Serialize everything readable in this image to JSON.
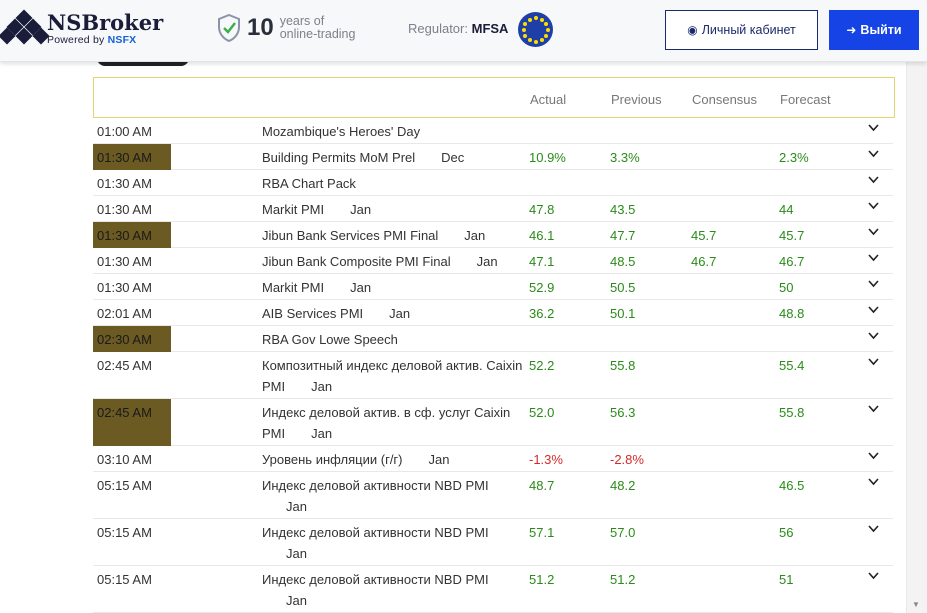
{
  "header": {
    "brand_name": "NSBroker",
    "brand_sub_prefix": "Powered by ",
    "brand_sub_highlight": "NSFX",
    "years_number": "10",
    "years_line1": "years of",
    "years_line2": "online-trading",
    "regulator_label": "Regulator:",
    "regulator_value": "MFSA",
    "cabinet_label": "Личный кабинет",
    "exit_label": "Выйти"
  },
  "colors": {
    "accent": "#1543e6",
    "navy": "#1a2a6c",
    "positive": "#2a8a1a",
    "negative": "#d42a2a",
    "highlight": "#6b5a22"
  },
  "table": {
    "columns": {
      "actual": "Actual",
      "previous": "Previous",
      "consensus": "Consensus",
      "forecast": "Forecast"
    },
    "rows": [
      {
        "time": "01:00 AM",
        "hl": false,
        "event": "Mozambique's Heroes' Day",
        "period": "",
        "actual": "",
        "previous": "",
        "consensus": "",
        "forecast": "",
        "h": 26
      },
      {
        "time": "01:30 AM",
        "hl": true,
        "event": "Building Permits MoM Prel",
        "period": "Dec",
        "actual": "10.9%",
        "previous": "3.3%",
        "consensus": "",
        "forecast": "2.3%",
        "h": 26
      },
      {
        "time": "01:30 AM",
        "hl": false,
        "event": "RBA Chart Pack",
        "period": "",
        "actual": "",
        "previous": "",
        "consensus": "",
        "forecast": "",
        "h": 26
      },
      {
        "time": "01:30 AM",
        "hl": false,
        "event": "Markit PMI",
        "period": "Jan",
        "actual": "47.8",
        "previous": "43.5",
        "consensus": "",
        "forecast": "44",
        "h": 26
      },
      {
        "time": "01:30 AM",
        "hl": true,
        "event": "Jibun Bank Services PMI Final",
        "period": "Jan",
        "actual": "46.1",
        "previous": "47.7",
        "consensus": "45.7",
        "forecast": "45.7",
        "h": 26
      },
      {
        "time": "01:30 AM",
        "hl": false,
        "event": "Jibun Bank Composite PMI Final",
        "period": "Jan",
        "actual": "47.1",
        "previous": "48.5",
        "consensus": "46.7",
        "forecast": "46.7",
        "h": 26
      },
      {
        "time": "01:30 AM",
        "hl": false,
        "event": "Markit PMI",
        "period": "Jan",
        "actual": "52.9",
        "previous": "50.5",
        "consensus": "",
        "forecast": "50",
        "h": 26
      },
      {
        "time": "02:01 AM",
        "hl": false,
        "event": "AIB Services PMI",
        "period": "Jan",
        "actual": "36.2",
        "previous": "50.1",
        "consensus": "",
        "forecast": "48.8",
        "h": 26
      },
      {
        "time": "02:30 AM",
        "hl": true,
        "event": "RBA Gov Lowe Speech",
        "period": "",
        "actual": "",
        "previous": "",
        "consensus": "",
        "forecast": "",
        "h": 26
      },
      {
        "time": "02:45 AM",
        "hl": false,
        "event": "Композитный индекс деловой актив. Caixin PMI",
        "period": "Jan",
        "actual": "52.2",
        "previous": "55.8",
        "consensus": "",
        "forecast": "55.4",
        "h": 47
      },
      {
        "time": "02:45 AM",
        "hl": true,
        "event": "Индекс деловой актив. в сф. услуг Caixin PMI",
        "period": "Jan",
        "actual": "52.0",
        "previous": "56.3",
        "consensus": "",
        "forecast": "55.8",
        "h": 47
      },
      {
        "time": "03:10 AM",
        "hl": false,
        "event": "Уровень инфляции (г/г)",
        "period": "Jan",
        "actual": "-1.3%",
        "previous": "-2.8%",
        "consensus": "",
        "forecast": "",
        "neg": true,
        "h": 26
      },
      {
        "time": "05:15 AM",
        "hl": false,
        "event": "Индекс деловой активности NBD PMI",
        "period": "Jan",
        "actual": "48.7",
        "previous": "48.2",
        "consensus": "",
        "forecast": "46.5",
        "h": 47
      },
      {
        "time": "05:15 AM",
        "hl": false,
        "event": "Индекс деловой активности NBD PMI",
        "period": "Jan",
        "actual": "57.1",
        "previous": "57.0",
        "consensus": "",
        "forecast": "56",
        "h": 47
      },
      {
        "time": "05:15 AM",
        "hl": false,
        "event": "Индекс деловой активности NBD PMI",
        "period": "Jan",
        "actual": "51.2",
        "previous": "51.2",
        "consensus": "",
        "forecast": "51",
        "h": 47
      }
    ]
  }
}
